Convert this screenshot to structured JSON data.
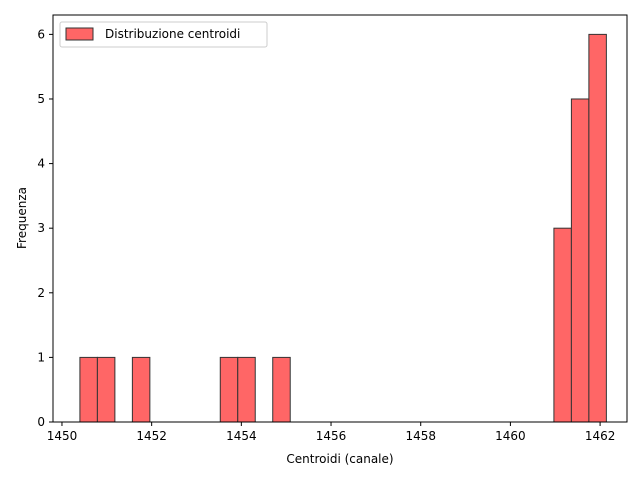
{
  "chart_data": {
    "type": "bar",
    "subtype": "histogram",
    "title": "",
    "xlabel": "Centroidi (canale)",
    "ylabel": "Frequenza",
    "xlim": [
      1449.8,
      1462.6
    ],
    "ylim": [
      0,
      6.3
    ],
    "x_ticks": [
      1450,
      1452,
      1454,
      1456,
      1458,
      1460,
      1462
    ],
    "y_ticks": [
      0,
      1,
      2,
      3,
      4,
      5,
      6
    ],
    "grid": false,
    "legend": {
      "position": "top-left",
      "entries": [
        "Distribuzione centroidi"
      ]
    },
    "series": [
      {
        "name": "Distribuzione centroidi",
        "color": "#ff6666",
        "edge_color": "#333333",
        "bins": [
          {
            "x0": 1450.4,
            "x1": 1450.79,
            "count": 1
          },
          {
            "x0": 1450.79,
            "x1": 1451.18,
            "count": 1
          },
          {
            "x0": 1451.57,
            "x1": 1451.96,
            "count": 1
          },
          {
            "x0": 1453.53,
            "x1": 1453.92,
            "count": 1
          },
          {
            "x0": 1453.92,
            "x1": 1454.31,
            "count": 1
          },
          {
            "x0": 1454.7,
            "x1": 1455.09,
            "count": 1
          },
          {
            "x0": 1460.97,
            "x1": 1461.36,
            "count": 3
          },
          {
            "x0": 1461.36,
            "x1": 1461.75,
            "count": 5
          },
          {
            "x0": 1461.75,
            "x1": 1462.14,
            "count": 6
          }
        ]
      }
    ]
  }
}
